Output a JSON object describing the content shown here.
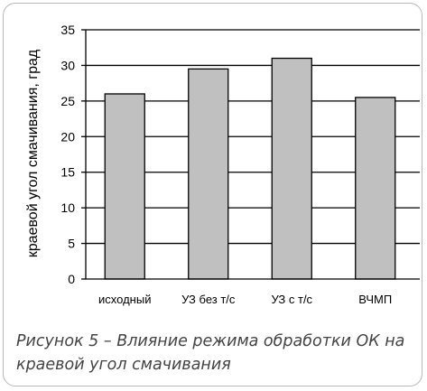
{
  "chart_data": {
    "type": "bar",
    "categories": [
      "исходный",
      "УЗ без т/с",
      "УЗ с т/с",
      "ВЧМП"
    ],
    "values": [
      26,
      29.5,
      31,
      25.5
    ],
    "ylabel": "краевой угол смачивания, град",
    "xlabel": "",
    "ylim": [
      0,
      35
    ],
    "yticks": [
      0,
      5,
      10,
      15,
      20,
      25,
      30,
      35
    ],
    "grid": true,
    "bar_color": "#c0c0c0",
    "bar_edge_color": "#000000"
  },
  "caption": "Рисунок 5 – Влияние режима обработки ОК на краевой угол смачивания"
}
